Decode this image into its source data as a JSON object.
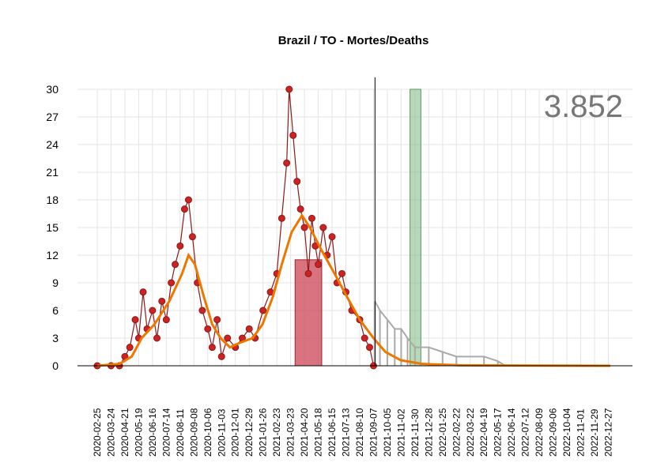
{
  "chart_data": {
    "type": "line",
    "title": "Brazil / TO - Mortes/Deaths",
    "total_label": "3.852",
    "xlabel": "",
    "ylabel": "",
    "ylim": [
      0,
      30
    ],
    "y_ticks": [
      0,
      3,
      6,
      9,
      12,
      15,
      18,
      21,
      24,
      27,
      30
    ],
    "x_range": [
      "2020-02-25",
      "2022-12-31"
    ],
    "x_ticks": [
      "2020-02-25",
      "2020-03-24",
      "2020-04-21",
      "2020-05-19",
      "2020-06-16",
      "2020-07-14",
      "2020-08-11",
      "2020-09-08",
      "2020-10-06",
      "2020-11-03",
      "2020-12-01",
      "2020-12-29",
      "2021-01-26",
      "2021-02-23",
      "2021-03-23",
      "2021-04-20",
      "2021-05-18",
      "2021-06-15",
      "2021-07-13",
      "2021-08-10",
      "2021-09-07",
      "2021-10-05",
      "2021-11-02",
      "2021-11-30",
      "2021-12-28",
      "2022-01-25",
      "2022-02-22",
      "2022-03-22",
      "2022-04-19",
      "2022-05-17",
      "2022-06-14",
      "2022-07-12",
      "2022-08-09",
      "2022-09-06",
      "2022-10-04",
      "2022-11-01",
      "2022-11-29",
      "2022-12-27"
    ],
    "grid": true,
    "vline_date": "2021-09-10",
    "highlight_red": {
      "start": "2021-04-01",
      "end": "2021-05-25",
      "value": 11.5
    },
    "highlight_green": {
      "start": "2021-11-20",
      "end": "2021-12-12"
    },
    "colors": {
      "observed": "#8b1a1a",
      "observed_fill": "#cc2222",
      "smooth": "#ee7700",
      "projection": "#aaaaaa",
      "red_band": "#d05060",
      "green_band": "#7fb77f",
      "vline": "#000000",
      "total": "#777777"
    },
    "smooth_series": [
      [
        "2020-02-25",
        0.0
      ],
      [
        "2020-04-10",
        0.2
      ],
      [
        "2020-05-05",
        1.0
      ],
      [
        "2020-05-25",
        3.0
      ],
      [
        "2020-06-20",
        4.5
      ],
      [
        "2020-07-20",
        7.0
      ],
      [
        "2020-08-15",
        10.0
      ],
      [
        "2020-08-28",
        12.0
      ],
      [
        "2020-09-10",
        11.0
      ],
      [
        "2020-09-28",
        7.5
      ],
      [
        "2020-10-15",
        4.5
      ],
      [
        "2020-11-01",
        3.0
      ],
      [
        "2020-11-20",
        2.0
      ],
      [
        "2020-12-10",
        2.5
      ],
      [
        "2021-01-05",
        3.0
      ],
      [
        "2021-01-25",
        4.5
      ],
      [
        "2021-02-15",
        7.5
      ],
      [
        "2021-03-05",
        11.0
      ],
      [
        "2021-03-25",
        14.5
      ],
      [
        "2021-04-15",
        16.3
      ],
      [
        "2021-05-01",
        15.0
      ],
      [
        "2021-05-25",
        12.5
      ],
      [
        "2021-06-20",
        10.0
      ],
      [
        "2021-07-15",
        7.5
      ],
      [
        "2021-08-10",
        5.0
      ],
      [
        "2021-09-07",
        3.0
      ],
      [
        "2021-10-01",
        1.5
      ],
      [
        "2021-11-01",
        0.6
      ],
      [
        "2021-12-15",
        0.2
      ],
      [
        "2022-03-01",
        0.05
      ],
      [
        "2022-12-31",
        0.0
      ]
    ],
    "observed_series": [
      [
        "2020-02-25",
        0
      ],
      [
        "2020-03-24",
        0
      ],
      [
        "2020-04-10",
        0
      ],
      [
        "2020-04-21",
        1
      ],
      [
        "2020-05-01",
        2
      ],
      [
        "2020-05-12",
        5
      ],
      [
        "2020-05-19",
        3
      ],
      [
        "2020-05-28",
        8
      ],
      [
        "2020-06-05",
        4
      ],
      [
        "2020-06-16",
        6
      ],
      [
        "2020-06-25",
        3
      ],
      [
        "2020-07-05",
        7
      ],
      [
        "2020-07-14",
        5
      ],
      [
        "2020-07-24",
        9
      ],
      [
        "2020-08-01",
        11
      ],
      [
        "2020-08-11",
        13
      ],
      [
        "2020-08-20",
        17
      ],
      [
        "2020-08-28",
        18
      ],
      [
        "2020-09-05",
        14
      ],
      [
        "2020-09-15",
        9
      ],
      [
        "2020-09-25",
        6
      ],
      [
        "2020-10-06",
        4
      ],
      [
        "2020-10-15",
        2
      ],
      [
        "2020-10-25",
        5
      ],
      [
        "2020-11-03",
        1
      ],
      [
        "2020-11-15",
        3
      ],
      [
        "2020-12-01",
        2
      ],
      [
        "2020-12-15",
        3
      ],
      [
        "2020-12-29",
        4
      ],
      [
        "2021-01-10",
        3
      ],
      [
        "2021-01-26",
        6
      ],
      [
        "2021-02-10",
        8
      ],
      [
        "2021-02-23",
        10
      ],
      [
        "2021-03-05",
        16
      ],
      [
        "2021-03-15",
        22
      ],
      [
        "2021-03-20",
        30
      ],
      [
        "2021-03-28",
        25
      ],
      [
        "2021-04-05",
        20
      ],
      [
        "2021-04-12",
        17
      ],
      [
        "2021-04-20",
        15
      ],
      [
        "2021-04-28",
        10
      ],
      [
        "2021-05-05",
        16
      ],
      [
        "2021-05-12",
        13
      ],
      [
        "2021-05-18",
        11
      ],
      [
        "2021-05-28",
        15
      ],
      [
        "2021-06-05",
        12
      ],
      [
        "2021-06-15",
        14
      ],
      [
        "2021-06-25",
        9
      ],
      [
        "2021-07-05",
        10
      ],
      [
        "2021-07-13",
        8
      ],
      [
        "2021-07-25",
        6
      ],
      [
        "2021-08-10",
        5
      ],
      [
        "2021-08-20",
        3
      ],
      [
        "2021-08-30",
        2
      ],
      [
        "2021-09-07",
        0
      ]
    ],
    "projection_series": [
      [
        "2021-09-10",
        7
      ],
      [
        "2021-09-20",
        6
      ],
      [
        "2021-10-05",
        5
      ],
      [
        "2021-10-20",
        4
      ],
      [
        "2021-11-02",
        4
      ],
      [
        "2021-11-15",
        3
      ],
      [
        "2021-11-30",
        2
      ],
      [
        "2021-12-28",
        2
      ],
      [
        "2022-01-25",
        1.5
      ],
      [
        "2022-02-22",
        1
      ],
      [
        "2022-04-19",
        1
      ],
      [
        "2022-05-17",
        0.5
      ],
      [
        "2022-06-01",
        0
      ]
    ]
  }
}
